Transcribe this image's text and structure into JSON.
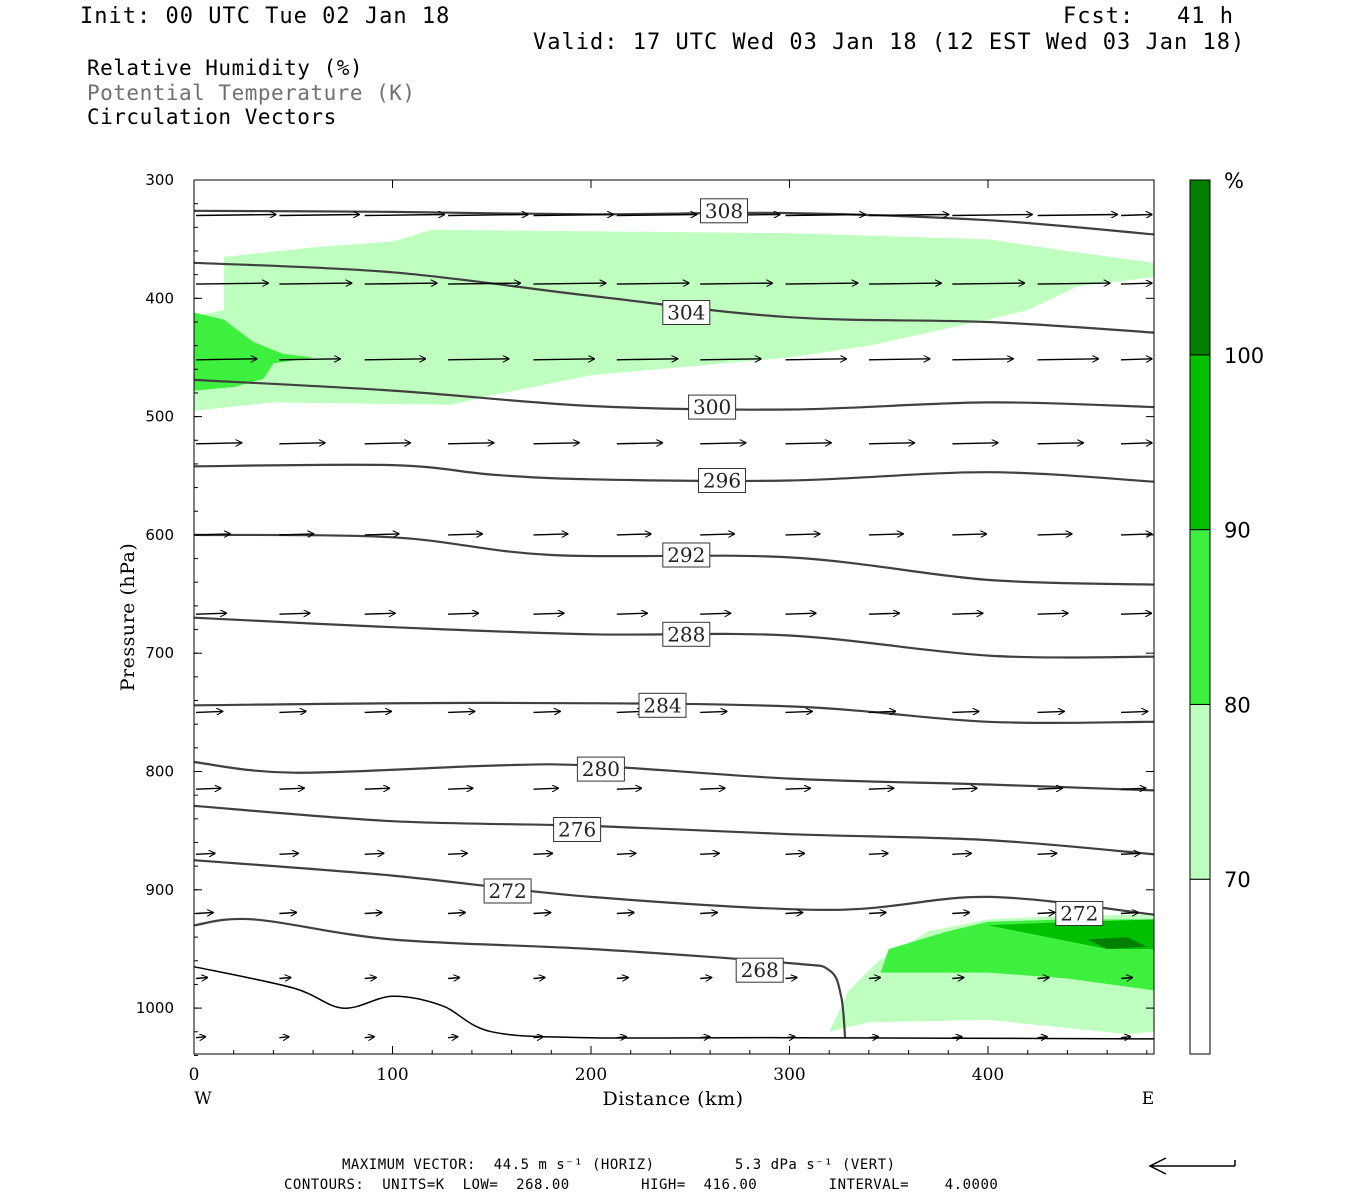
{
  "header": {
    "init": "Init: 00 UTC Tue 02 Jan 18",
    "fcst": "Fcst:   41 h",
    "valid": "Valid: 17 UTC Wed 03 Jan 18 (12 EST Wed 03 Jan 18)"
  },
  "legend": {
    "line1": "Relative Humidity (%)",
    "line2": "Potential Temperature (K)",
    "line3": "Circulation Vectors"
  },
  "footer": {
    "line1": "MAXIMUM VECTOR:  44.5 m s⁻¹ (HORIZ)         5.3 dPa s⁻¹ (VERT)",
    "line2": "CONTOURS:  UNITS=K  LOW=  268.00        HIGH=  416.00        INTERVAL=    4.0000"
  },
  "colors": {
    "rh70": "#bfffbf",
    "rh80": "#3df03d",
    "rh90": "#00c000",
    "rh100": "#008000",
    "contour": "#404040",
    "axis": "#000000"
  },
  "chart_data": {
    "type": "cross-section",
    "xlabel": "Distance (km)",
    "ylabel": "Pressure (hPa)",
    "xlim": [
      0,
      485
    ],
    "ylim": [
      300,
      1040
    ],
    "y_scale": "linear-pressure",
    "xticks": [
      0,
      100,
      200,
      300,
      400
    ],
    "yticks": [
      300,
      400,
      500,
      600,
      700,
      800,
      900,
      1000
    ],
    "x_end_labels": {
      "left": "W",
      "right": "E"
    },
    "colorbar": {
      "unit": "%",
      "levels": [
        70,
        80,
        90,
        100
      ],
      "colors": [
        "#ffffff",
        "#bfffbf",
        "#3df03d",
        "#00c000",
        "#008000"
      ]
    },
    "contours": [
      {
        "label": "308",
        "points": [
          [
            0,
            326
          ],
          [
            100,
            327
          ],
          [
            200,
            329
          ],
          [
            300,
            328
          ],
          [
            400,
            334
          ],
          [
            485,
            346
          ]
        ],
        "label_at": [
          267,
          326
        ]
      },
      {
        "label": "304",
        "points": [
          [
            0,
            370
          ],
          [
            100,
            378
          ],
          [
            200,
            398
          ],
          [
            300,
            416
          ],
          [
            400,
            420
          ],
          [
            485,
            429
          ]
        ],
        "label_at": [
          248,
          412
        ]
      },
      {
        "label": "300",
        "points": [
          [
            0,
            469
          ],
          [
            100,
            478
          ],
          [
            200,
            491
          ],
          [
            300,
            494
          ],
          [
            400,
            488
          ],
          [
            485,
            492
          ]
        ],
        "label_at": [
          261,
          492
        ]
      },
      {
        "label": "296",
        "points": [
          [
            0,
            542
          ],
          [
            100,
            541
          ],
          [
            150,
            549
          ],
          [
            200,
            553
          ],
          [
            300,
            554
          ],
          [
            400,
            547
          ],
          [
            485,
            555
          ]
        ],
        "label_at": [
          266,
          554
        ]
      },
      {
        "label": "292",
        "points": [
          [
            0,
            600
          ],
          [
            100,
            602
          ],
          [
            180,
            617
          ],
          [
            300,
            619
          ],
          [
            400,
            638
          ],
          [
            485,
            642
          ]
        ],
        "label_at": [
          248,
          617
        ]
      },
      {
        "label": "288",
        "points": [
          [
            0,
            670
          ],
          [
            100,
            678
          ],
          [
            200,
            684
          ],
          [
            300,
            685
          ],
          [
            400,
            702
          ],
          [
            485,
            703
          ]
        ],
        "label_at": [
          248,
          684
        ]
      },
      {
        "label": "284",
        "points": [
          [
            0,
            744
          ],
          [
            150,
            742
          ],
          [
            300,
            745
          ],
          [
            400,
            758
          ],
          [
            485,
            758
          ]
        ],
        "label_at": [
          236,
          744
        ]
      },
      {
        "label": "280",
        "points": [
          [
            0,
            792
          ],
          [
            50,
            801
          ],
          [
            150,
            795
          ],
          [
            200,
            795
          ],
          [
            300,
            806
          ],
          [
            400,
            811
          ],
          [
            485,
            816
          ]
        ],
        "label_at": [
          205,
          798
        ]
      },
      {
        "label": "276",
        "points": [
          [
            0,
            829
          ],
          [
            100,
            842
          ],
          [
            200,
            846
          ],
          [
            300,
            853
          ],
          [
            400,
            858
          ],
          [
            485,
            870
          ]
        ],
        "label_at": [
          193,
          849
        ]
      },
      {
        "label": "272",
        "points": [
          [
            0,
            875
          ],
          [
            100,
            888
          ],
          [
            200,
            906
          ],
          [
            320,
            917
          ],
          [
            400,
            906
          ],
          [
            485,
            921
          ]
        ],
        "label_at": [
          158,
          901
        ]
      },
      {
        "label": "268",
        "points": [
          [
            0,
            930
          ],
          [
            30,
            925
          ],
          [
            100,
            942
          ],
          [
            200,
            950
          ],
          [
            300,
            962
          ],
          [
            320,
            968
          ],
          [
            326,
            990
          ],
          [
            328,
            1025
          ]
        ],
        "label_at": [
          285,
          968
        ]
      },
      {
        "label": "",
        "points": [
          [
            0,
            965
          ],
          [
            50,
            983
          ],
          [
            75,
            1000
          ],
          [
            100,
            990
          ],
          [
            125,
            998
          ],
          [
            150,
            1020
          ],
          [
            200,
            1025
          ],
          [
            300,
            1025
          ],
          [
            485,
            1026
          ]
        ],
        "label_at": null
      }
    ],
    "extra_labels": [
      {
        "label": "272",
        "at": [
          446,
          920
        ]
      }
    ],
    "rh_regions": [
      {
        "level": 70,
        "points": [
          [
            0,
            415
          ],
          [
            15,
            410
          ],
          [
            15,
            365
          ],
          [
            60,
            357
          ],
          [
            100,
            352
          ],
          [
            120,
            342
          ],
          [
            300,
            345
          ],
          [
            400,
            350
          ],
          [
            440,
            360
          ],
          [
            485,
            370
          ],
          [
            485,
            382
          ],
          [
            445,
            390
          ],
          [
            420,
            410
          ],
          [
            400,
            418
          ],
          [
            340,
            440
          ],
          [
            300,
            450
          ],
          [
            200,
            465
          ],
          [
            150,
            482
          ],
          [
            130,
            490
          ],
          [
            40,
            488
          ],
          [
            0,
            495
          ]
        ]
      },
      {
        "level": 70,
        "points": [
          [
            320,
            1020
          ],
          [
            330,
            985
          ],
          [
            345,
            960
          ],
          [
            370,
            935
          ],
          [
            400,
            925
          ],
          [
            440,
            922
          ],
          [
            485,
            921
          ],
          [
            485,
            1020
          ],
          [
            470,
            1022
          ],
          [
            400,
            1010
          ],
          [
            340,
            1012
          ]
        ]
      },
      {
        "level": 80,
        "points": [
          [
            0,
            412
          ],
          [
            15,
            418
          ],
          [
            30,
            437
          ],
          [
            45,
            447
          ],
          [
            60,
            450
          ],
          [
            40,
            455
          ],
          [
            35,
            468
          ],
          [
            20,
            475
          ],
          [
            0,
            478
          ]
        ]
      },
      {
        "level": 80,
        "points": [
          [
            346,
            970
          ],
          [
            350,
            950
          ],
          [
            380,
            935
          ],
          [
            400,
            927
          ],
          [
            440,
            925
          ],
          [
            485,
            925
          ],
          [
            485,
            985
          ],
          [
            440,
            975
          ],
          [
            400,
            970
          ]
        ]
      },
      {
        "level": 90,
        "points": [
          [
            400,
            930
          ],
          [
            430,
            928
          ],
          [
            485,
            925
          ],
          [
            485,
            950
          ],
          [
            460,
            950
          ],
          [
            430,
            940
          ]
        ]
      },
      {
        "level": 100,
        "points": [
          [
            450,
            942
          ],
          [
            470,
            940
          ],
          [
            480,
            948
          ],
          [
            460,
            950
          ]
        ]
      }
    ],
    "vector_rows": [
      {
        "p": 330,
        "x": [
          0,
          42,
          85,
          127,
          170,
          212,
          254,
          297,
          339,
          381,
          424,
          466
        ],
        "u": 42,
        "v": 0
      },
      {
        "p": 388,
        "x": [
          0,
          42,
          85,
          127,
          170,
          212,
          254,
          297,
          339,
          381,
          424,
          466
        ],
        "u": 38,
        "v": 0
      },
      {
        "p": 452,
        "x": [
          0,
          42,
          85,
          127,
          170,
          212,
          254,
          297,
          339,
          381,
          424,
          466
        ],
        "u": 32,
        "v": 0
      },
      {
        "p": 523,
        "x": [
          0,
          42,
          85,
          127,
          170,
          212,
          254,
          297,
          339,
          381,
          424,
          466
        ],
        "u": 24,
        "v": 0
      },
      {
        "p": 600,
        "x": [
          0,
          42,
          85,
          127,
          170,
          212,
          254,
          297,
          339,
          381,
          424,
          466
        ],
        "u": 18,
        "v": 0
      },
      {
        "p": 667,
        "x": [
          0,
          42,
          85,
          127,
          170,
          212,
          254,
          297,
          339,
          381,
          424,
          466
        ],
        "u": 16,
        "v": 0
      },
      {
        "p": 750,
        "x": [
          0,
          42,
          85,
          127,
          170,
          212,
          254,
          297,
          339,
          381,
          424,
          466
        ],
        "u": 14,
        "v": 0
      },
      {
        "p": 815,
        "x": [
          0,
          42,
          85,
          127,
          170,
          212,
          254,
          297,
          339,
          381,
          424,
          466
        ],
        "u": 13,
        "v": 0
      },
      {
        "p": 870,
        "x": [
          0,
          42,
          85,
          127,
          170,
          212,
          254,
          297,
          339,
          381,
          424,
          466
        ],
        "u": 10,
        "v": 0
      },
      {
        "p": 920,
        "x": [
          0,
          42,
          85,
          127,
          170,
          212,
          254,
          297,
          339,
          381,
          424,
          466
        ],
        "u": 9,
        "v": 0
      },
      {
        "p": 975,
        "x": [
          0,
          42,
          85,
          127,
          170,
          212,
          254,
          297,
          339,
          381,
          424,
          466
        ],
        "u": 6,
        "v": 0
      },
      {
        "p": 1025,
        "x": [
          0,
          42,
          85,
          127,
          170,
          212,
          254,
          297,
          339,
          381,
          424,
          466
        ],
        "u": 5,
        "v": 0
      }
    ]
  }
}
